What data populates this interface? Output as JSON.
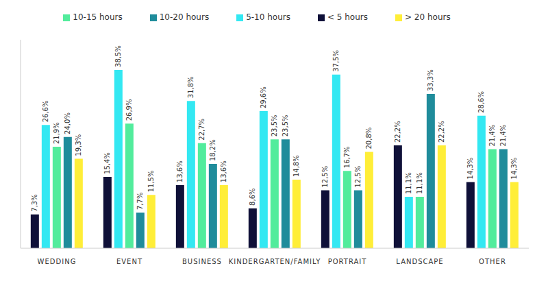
{
  "chart_data": {
    "type": "bar",
    "categories": [
      "WEDDING",
      "EVENT",
      "BUSINESS",
      "KINDERGARTEN/FAMILY",
      "PORTRAIT",
      "LANDSCAPE",
      "OTHER"
    ],
    "series": [
      {
        "name": "< 5 hours",
        "color": "#0f1038",
        "values": [
          7.3,
          15.4,
          13.6,
          8.6,
          12.5,
          22.2,
          14.3
        ],
        "value_labels": [
          "7,3%",
          "15,4%",
          "13,6%",
          "8,6%",
          "12,5%",
          "22,2%",
          "14,3%"
        ]
      },
      {
        "name": "5-10 hours",
        "color": "#33e8f2",
        "values": [
          26.6,
          38.5,
          31.8,
          29.6,
          37.5,
          11.1,
          28.6
        ],
        "value_labels": [
          "26,6%",
          "38,5%",
          "31,8%",
          "29,6%",
          "37,5%",
          "11,1%",
          "28,6%"
        ]
      },
      {
        "name": "10-15 hours",
        "color": "#52ec9c",
        "values": [
          21.9,
          26.9,
          22.7,
          23.5,
          16.7,
          11.1,
          21.4
        ],
        "value_labels": [
          "21,9%",
          "26,9%",
          "22,7%",
          "23,5%",
          "16,7%",
          "11,1%",
          "21,4%"
        ]
      },
      {
        "name": "10-20 hours",
        "color": "#1f8c9b",
        "values": [
          24.0,
          7.7,
          18.2,
          23.5,
          12.5,
          33.3,
          21.4
        ],
        "value_labels": [
          "24,0%",
          "7,7%",
          "18,2%",
          "23,5%",
          "12,5%",
          "33,3%",
          "21,4%"
        ]
      },
      {
        "name": "> 20 hours",
        "color": "#ffee38",
        "values": [
          19.3,
          11.5,
          13.6,
          14.8,
          20.8,
          22.2,
          14.3
        ],
        "value_labels": [
          "19,3%",
          "11,5%",
          "13,6%",
          "14,8%",
          "20,8%",
          "22,2%",
          "14,3%"
        ]
      }
    ],
    "ylim": [
      0,
      45
    ],
    "tick_labels": "x",
    "legend": "top",
    "data_labels": true,
    "grid": false
  }
}
